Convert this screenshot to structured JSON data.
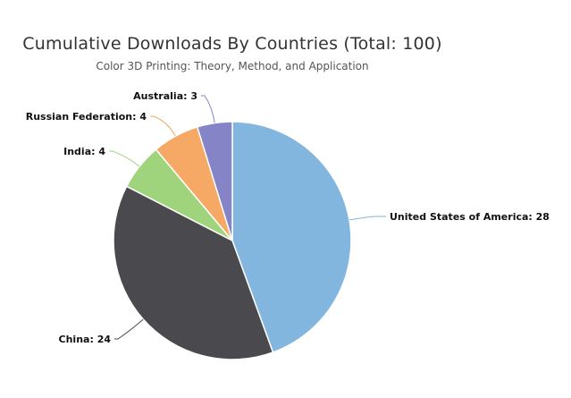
{
  "chart_data": {
    "type": "pie",
    "title": "Cumulative Downloads By Countries (Total: 100)",
    "subtitle": "Color 3D Printing: Theory, Method, and Application",
    "slices": [
      {
        "label": "United States of America: 28",
        "value": 28,
        "color": "#82b6df"
      },
      {
        "label": "China: 24",
        "value": 24,
        "color": "#4a4a4e"
      },
      {
        "label": "India: 4",
        "value": 4,
        "color": "#9fd47d"
      },
      {
        "label": "Russian Federation: 4",
        "value": 4,
        "color": "#f5a965"
      },
      {
        "label": "Australia: 3",
        "value": 3,
        "color": "#8484c6"
      }
    ]
  }
}
